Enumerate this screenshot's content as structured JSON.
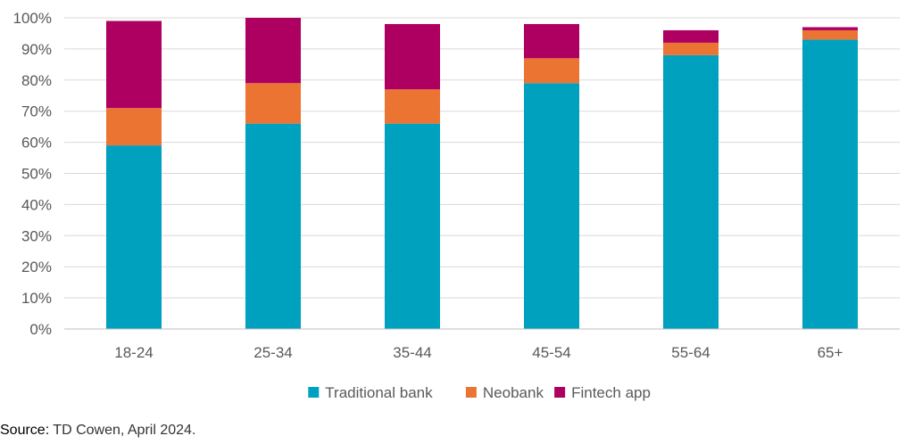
{
  "chart_data": {
    "type": "bar",
    "stacked": true,
    "categories": [
      "18-24",
      "25-34",
      "35-44",
      "45-54",
      "55-64",
      "65+"
    ],
    "series": [
      {
        "name": "Traditional bank",
        "color": "#00A1BF",
        "values": [
          59,
          66,
          66,
          79,
          88,
          93
        ]
      },
      {
        "name": "Neobank",
        "color": "#EC7433",
        "values": [
          12,
          13,
          11,
          8,
          4,
          3
        ]
      },
      {
        "name": "Fintech app",
        "color": "#AE0061",
        "values": [
          28,
          21,
          21,
          11,
          4,
          1
        ]
      }
    ],
    "ylim": [
      0,
      100
    ],
    "yticks": [
      0,
      10,
      20,
      30,
      40,
      50,
      60,
      70,
      80,
      90,
      100
    ],
    "ytick_format": "{v}%",
    "grid": true,
    "legend_position": "bottom",
    "source_label": "Source:",
    "source_text": " TD Cowen, April 2024."
  }
}
